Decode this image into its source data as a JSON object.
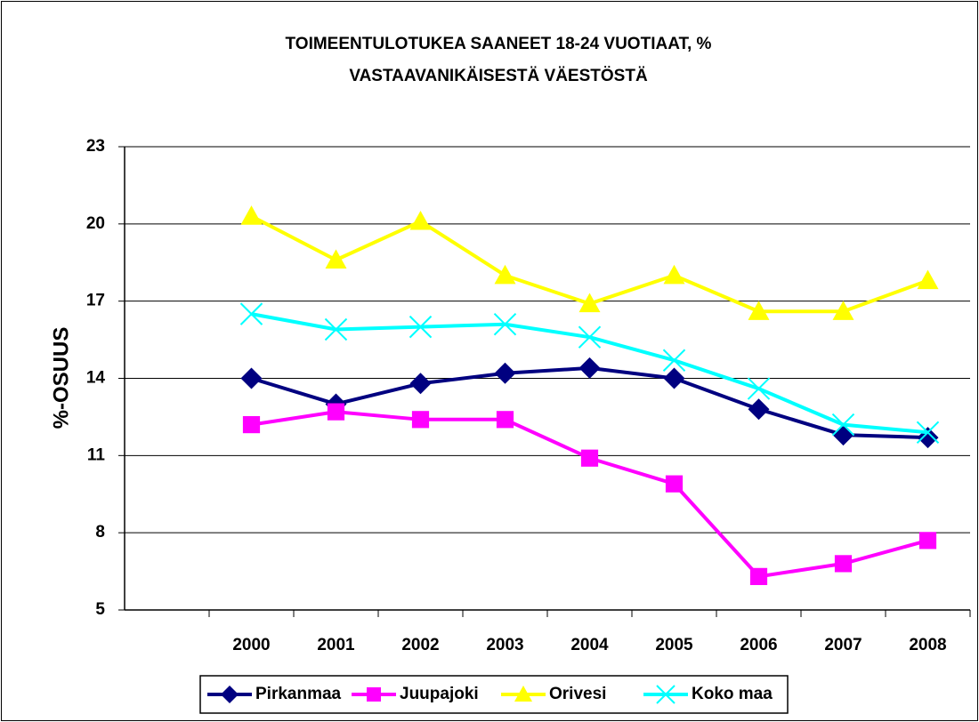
{
  "chart_data": {
    "type": "line",
    "title": [
      "TOIMEENTULOTUKEA SAANEET 18-24 VUOTIAAT, %",
      "VASTAAVANIKÄISESTÄ VÄESTÖSTÄ"
    ],
    "y_label": "%-OSUUS",
    "categories": [
      null,
      "2000",
      "2001",
      "2002",
      "2003",
      "2004",
      "2005",
      "2006",
      "2007",
      "2008"
    ],
    "series": [
      {
        "name": "Pirkanmaa",
        "color": "#000080",
        "marker": "diamond",
        "values": [
          null,
          14.0,
          13.0,
          13.8,
          14.2,
          14.4,
          14.0,
          12.8,
          11.8,
          11.7
        ]
      },
      {
        "name": "Juupajoki",
        "color": "#ff00ff",
        "marker": "square",
        "values": [
          null,
          12.2,
          12.7,
          12.4,
          12.4,
          10.9,
          9.9,
          6.3,
          6.8,
          7.7
        ]
      },
      {
        "name": "Orivesi",
        "color": "#ffff00",
        "marker": "triangle",
        "values": [
          null,
          20.3,
          18.6,
          20.1,
          18.0,
          16.9,
          18.0,
          16.6,
          16.6,
          17.8
        ]
      },
      {
        "name": "Koko maa",
        "color": "#00ffff",
        "marker": "x",
        "values": [
          null,
          16.5,
          15.9,
          16.0,
          16.1,
          15.6,
          14.7,
          13.6,
          12.2,
          11.9
        ]
      }
    ],
    "ylim": [
      5,
      23
    ],
    "yticks": [
      5,
      8,
      11,
      14,
      17,
      20,
      23
    ],
    "grid": true,
    "legend": "bottom"
  }
}
